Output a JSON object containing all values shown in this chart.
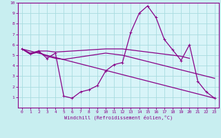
{
  "background_color": "#c8eef0",
  "plot_bg": "#d8f4f8",
  "line_color": "#880088",
  "grid_color": "#a8dce0",
  "spine_color": "#880088",
  "xlabel": "Windchill (Refroidissement éolien,°C)",
  "xlim": [
    -0.5,
    23.5
  ],
  "ylim": [
    0,
    10
  ],
  "xticks": [
    0,
    1,
    2,
    3,
    4,
    5,
    6,
    7,
    8,
    9,
    10,
    11,
    12,
    13,
    14,
    15,
    16,
    17,
    18,
    19,
    20,
    21,
    22,
    23
  ],
  "yticks": [
    1,
    2,
    3,
    4,
    5,
    6,
    7,
    8,
    9,
    10
  ],
  "line_main": {
    "x": [
      0,
      1,
      2,
      3,
      4,
      5,
      6,
      7,
      8,
      9,
      10,
      11,
      12,
      13,
      14,
      15,
      16,
      17,
      18,
      19,
      20,
      21,
      22,
      23
    ],
    "y": [
      5.6,
      5.1,
      5.4,
      4.7,
      5.2,
      1.1,
      0.9,
      1.5,
      1.7,
      2.1,
      3.5,
      4.1,
      4.3,
      7.2,
      9.0,
      9.7,
      8.6,
      6.5,
      5.5,
      4.5,
      6.0,
      2.5,
      1.5,
      0.9
    ]
  },
  "line_upper": {
    "x": [
      0,
      1,
      2,
      3,
      4,
      10,
      11,
      12,
      13,
      14,
      15,
      16,
      17,
      18,
      19,
      20
    ],
    "y": [
      5.6,
      5.2,
      5.4,
      5.4,
      5.3,
      5.6,
      5.6,
      5.6,
      5.5,
      5.4,
      5.3,
      5.2,
      5.1,
      5.0,
      4.9,
      4.7
    ]
  },
  "line_mid": {
    "x": [
      0,
      1,
      2,
      3,
      4,
      5,
      10,
      11,
      12,
      13,
      14,
      15,
      16,
      17,
      18,
      19,
      20,
      21,
      22,
      23
    ],
    "y": [
      5.6,
      5.1,
      5.3,
      4.9,
      4.7,
      4.6,
      5.2,
      5.1,
      5.0,
      4.8,
      4.6,
      4.4,
      4.2,
      4.0,
      3.8,
      3.6,
      3.4,
      3.2,
      3.0,
      2.8
    ]
  },
  "line_diag": {
    "x": [
      0,
      23
    ],
    "y": [
      5.6,
      0.9
    ]
  }
}
